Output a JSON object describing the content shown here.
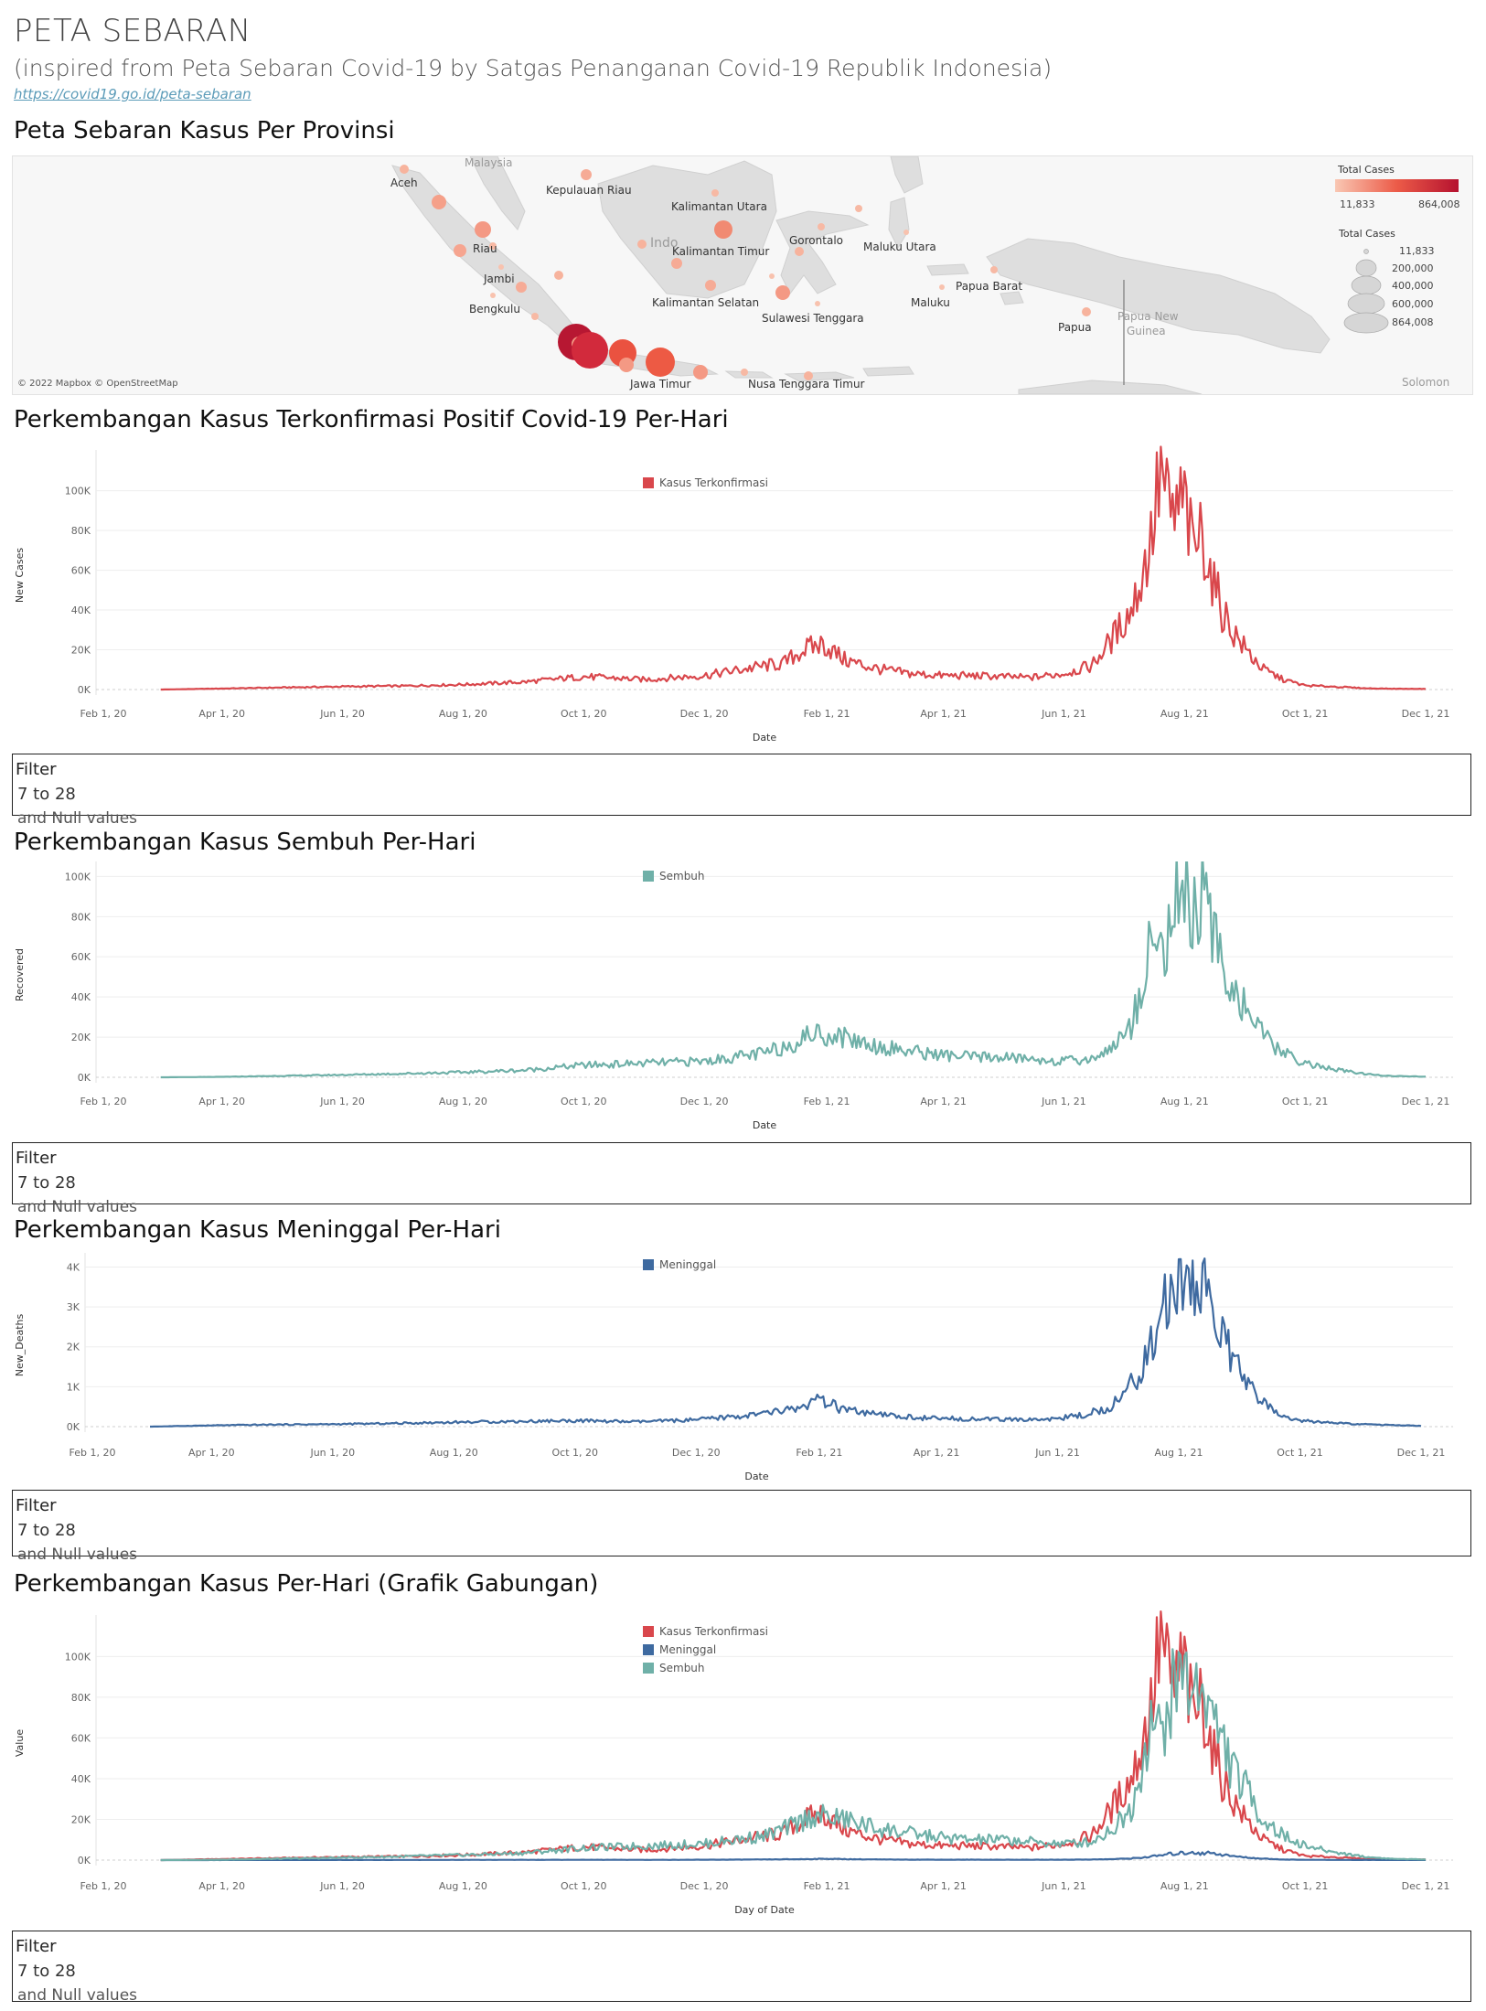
{
  "header": {
    "title": "PETA SEBARAN",
    "subtitle": "(inspired from Peta Sebaran Covid-19 by Satgas Penanganan Covid-19 Republik Indonesia)",
    "link": "https://covid19.go.id/peta-sebaran"
  },
  "map": {
    "title": "Peta Sebaran Kasus Per Provinsi",
    "credit": "© 2022 Mapbox © OpenStreetMap",
    "labels": {
      "malaysia": "Malaysia",
      "aceh": "Aceh",
      "kepri": "Kepulauan Riau",
      "kaltara": "Kalimantan Utara",
      "indo": "Indo",
      "riau": "Riau",
      "jambi": "Jambi",
      "bengkulu": "Bengkulu",
      "kaltim": "Kalimantan Timur",
      "gorontalo": "Gorontalo",
      "malut": "Maluku Utara",
      "kalsel": "Kalimantan Selatan",
      "sultra": "Sulawesi Tenggara",
      "maluku": "Maluku",
      "papbar": "Papua Barat",
      "papua": "Papua",
      "png1": "Papua New",
      "png2": "Guinea",
      "jatim": "Jawa Timur",
      "ntt": "Nusa Tenggara Timur",
      "solomon": "Solomon"
    },
    "legend_color": {
      "title": "Total Cases",
      "min": "11,833",
      "max": "864,008",
      "color_min": "#f9c7b3",
      "color_max": "#b5112f"
    },
    "legend_size": {
      "title": "Total Cases",
      "values": [
        "11,833",
        "200,000",
        "400,000",
        "600,000",
        "864,008"
      ]
    }
  },
  "charts": {
    "cases": {
      "title": "Perkembangan Kasus Terkonfirmasi Positif Covid-19 Per-Hari",
      "ylabel": "New Cases",
      "xlabel": "Date",
      "legend": [
        "Kasus Terkonfirmasi"
      ]
    },
    "recovered": {
      "title": "Perkembangan Kasus Sembuh Per-Hari",
      "ylabel": "Recovered",
      "xlabel": "Date",
      "legend": [
        "Sembuh"
      ]
    },
    "deaths": {
      "title": "Perkembangan Kasus Meninggal Per-Hari",
      "ylabel": "New_Deaths",
      "xlabel": "Date",
      "legend": [
        "Meninggal"
      ]
    },
    "combined": {
      "title": "Perkembangan Kasus Per-Hari (Grafik Gabungan)",
      "ylabel": "Value",
      "xlabel": "Day of Date",
      "legend": [
        "Kasus Terkonfirmasi",
        "Meninggal",
        "Sembuh"
      ]
    }
  },
  "filter": {
    "title": "Filter",
    "range": "7 to 28",
    "null_text": "and Null values"
  },
  "colors": {
    "cases": "#d9474c",
    "recovered": "#6fb0a8",
    "deaths": "#3e6aa0"
  },
  "chart_data": [
    {
      "type": "line",
      "title": "Perkembangan Kasus Terkonfirmasi Positif Covid-19 Per-Hari",
      "xlabel": "Date",
      "ylabel": "New Cases",
      "x_ticks": [
        "Feb 1, 20",
        "Apr 1, 20",
        "Jun 1, 20",
        "Aug 1, 20",
        "Oct 1, 20",
        "Dec 1, 20",
        "Feb 1, 21",
        "Apr 1, 21",
        "Jun 1, 21",
        "Aug 1, 21",
        "Oct 1, 21",
        "Dec 1, 21"
      ],
      "y_ticks": [
        "0K",
        "20K",
        "40K",
        "60K",
        "80K",
        "100K"
      ],
      "ylim": [
        0,
        100000
      ],
      "series": [
        {
          "name": "Kasus Terkonfirmasi",
          "color": "#d9474c",
          "x": [
            "2020-03-01",
            "2020-04-01",
            "2020-05-01",
            "2020-06-01",
            "2020-07-01",
            "2020-08-01",
            "2020-09-01",
            "2020-10-01",
            "2020-11-01",
            "2020-12-01",
            "2021-01-01",
            "2021-01-10",
            "2021-01-20",
            "2021-01-30",
            "2021-02-10",
            "2021-02-20",
            "2021-03-01",
            "2021-03-15",
            "2021-04-01",
            "2021-04-15",
            "2021-05-01",
            "2021-05-15",
            "2021-06-01",
            "2021-06-15",
            "2021-06-25",
            "2021-07-05",
            "2021-07-10",
            "2021-07-15",
            "2021-07-20",
            "2021-07-25",
            "2021-08-01",
            "2021-08-05",
            "2021-08-10",
            "2021-08-15",
            "2021-08-20",
            "2021-08-25",
            "2021-09-01",
            "2021-09-10",
            "2021-09-20",
            "2021-10-01",
            "2021-10-15",
            "2021-11-01",
            "2021-11-15",
            "2021-12-01"
          ],
          "y": [
            0,
            500,
            1000,
            1500,
            1800,
            2500,
            3800,
            6500,
            5000,
            7000,
            12000,
            13000,
            20000,
            23000,
            15000,
            12000,
            10000,
            8000,
            7000,
            7000,
            6500,
            6000,
            8000,
            12000,
            25000,
            40000,
            55000,
            75000,
            110000,
            85000,
            95000,
            70000,
            80000,
            55000,
            40000,
            30000,
            20000,
            10000,
            5000,
            2000,
            1500,
            600,
            400,
            300
          ]
        }
      ]
    },
    {
      "type": "line",
      "title": "Perkembangan Kasus Sembuh Per-Hari",
      "xlabel": "Date",
      "ylabel": "Recovered",
      "x_ticks": [
        "Feb 1, 20",
        "Apr 1, 20",
        "Jun 1, 20",
        "Aug 1, 20",
        "Oct 1, 20",
        "Dec 1, 20",
        "Feb 1, 21",
        "Apr 1, 21",
        "Jun 1, 21",
        "Aug 1, 21",
        "Oct 1, 21",
        "Dec 1, 21"
      ],
      "y_ticks": [
        "0K",
        "20K",
        "40K",
        "60K",
        "80K",
        "100K"
      ],
      "ylim": [
        0,
        100000
      ],
      "series": [
        {
          "name": "Sembuh",
          "color": "#6fb0a8",
          "x": [
            "2020-03-01",
            "2020-04-01",
            "2020-05-01",
            "2020-06-01",
            "2020-07-01",
            "2020-08-01",
            "2020-09-01",
            "2020-10-01",
            "2020-11-01",
            "2020-12-01",
            "2021-01-01",
            "2021-01-15",
            "2021-01-25",
            "2021-02-10",
            "2021-02-25",
            "2021-03-15",
            "2021-04-01",
            "2021-04-15",
            "2021-05-01",
            "2021-05-15",
            "2021-06-01",
            "2021-06-15",
            "2021-06-25",
            "2021-07-05",
            "2021-07-10",
            "2021-07-15",
            "2021-07-20",
            "2021-07-25",
            "2021-08-01",
            "2021-08-05",
            "2021-08-10",
            "2021-08-15",
            "2021-08-20",
            "2021-08-25",
            "2021-09-01",
            "2021-09-10",
            "2021-09-20",
            "2021-10-01",
            "2021-10-15",
            "2021-11-01",
            "2021-11-15",
            "2021-12-01"
          ],
          "y": [
            0,
            200,
            700,
            1200,
            1800,
            2500,
            3500,
            6000,
            7000,
            8000,
            12000,
            17000,
            22000,
            20000,
            16000,
            13000,
            11000,
            10000,
            10000,
            9000,
            8000,
            9000,
            15000,
            25000,
            45000,
            70000,
            60000,
            80000,
            95000,
            80000,
            90000,
            70000,
            60000,
            45000,
            35000,
            20000,
            12000,
            7000,
            4000,
            1500,
            600,
            300
          ]
        }
      ]
    },
    {
      "type": "line",
      "title": "Perkembangan Kasus Meninggal Per-Hari",
      "xlabel": "Date",
      "ylabel": "New_Deaths",
      "x_ticks": [
        "Feb 1, 20",
        "Apr 1, 20",
        "Jun 1, 20",
        "Aug 1, 20",
        "Oct 1, 20",
        "Dec 1, 20",
        "Feb 1, 21",
        "Apr 1, 21",
        "Jun 1, 21",
        "Aug 1, 21",
        "Oct 1, 21",
        "Dec 1, 21"
      ],
      "y_ticks": [
        "0K",
        "1K",
        "2K",
        "3K",
        "4K"
      ],
      "ylim": [
        0,
        4000
      ],
      "series": [
        {
          "name": "Meninggal",
          "color": "#3e6aa0",
          "x": [
            "2020-03-01",
            "2020-04-01",
            "2020-05-01",
            "2020-06-01",
            "2020-07-01",
            "2020-08-01",
            "2020-09-01",
            "2020-10-01",
            "2020-11-01",
            "2020-12-01",
            "2021-01-01",
            "2021-01-20",
            "2021-02-01",
            "2021-02-15",
            "2021-03-01",
            "2021-03-15",
            "2021-04-01",
            "2021-04-15",
            "2021-05-01",
            "2021-05-15",
            "2021-06-01",
            "2021-06-15",
            "2021-06-25",
            "2021-07-05",
            "2021-07-10",
            "2021-07-15",
            "2021-07-20",
            "2021-07-25",
            "2021-08-01",
            "2021-08-05",
            "2021-08-10",
            "2021-08-15",
            "2021-08-20",
            "2021-08-25",
            "2021-09-01",
            "2021-09-10",
            "2021-09-20",
            "2021-10-01",
            "2021-10-15",
            "2021-11-01",
            "2021-11-15",
            "2021-12-01"
          ],
          "y": [
            0,
            30,
            50,
            60,
            80,
            110,
            130,
            150,
            120,
            170,
            300,
            450,
            650,
            400,
            300,
            250,
            200,
            200,
            180,
            170,
            200,
            300,
            450,
            800,
            1200,
            1700,
            2300,
            3000,
            3500,
            4050,
            3100,
            3800,
            2600,
            2000,
            1300,
            700,
            300,
            150,
            100,
            60,
            40,
            20
          ]
        }
      ]
    },
    {
      "type": "line",
      "title": "Perkembangan Kasus Per-Hari (Grafik Gabungan)",
      "xlabel": "Day of Date",
      "ylabel": "Value",
      "x_ticks": [
        "Feb 1, 20",
        "Apr 1, 20",
        "Jun 1, 20",
        "Aug 1, 20",
        "Oct 1, 20",
        "Dec 1, 20",
        "Feb 1, 21",
        "Apr 1, 21",
        "Jun 1, 21",
        "Aug 1, 21",
        "Oct 1, 21",
        "Dec 1, 21"
      ],
      "y_ticks": [
        "0K",
        "20K",
        "40K",
        "60K",
        "80K",
        "100K"
      ],
      "ylim": [
        0,
        100000
      ],
      "series": [
        {
          "name": "Kasus Terkonfirmasi",
          "color": "#d9474c",
          "ref": 0
        },
        {
          "name": "Meninggal",
          "color": "#3e6aa0",
          "ref": 2
        },
        {
          "name": "Sembuh",
          "color": "#6fb0a8",
          "ref": 1
        }
      ]
    }
  ]
}
